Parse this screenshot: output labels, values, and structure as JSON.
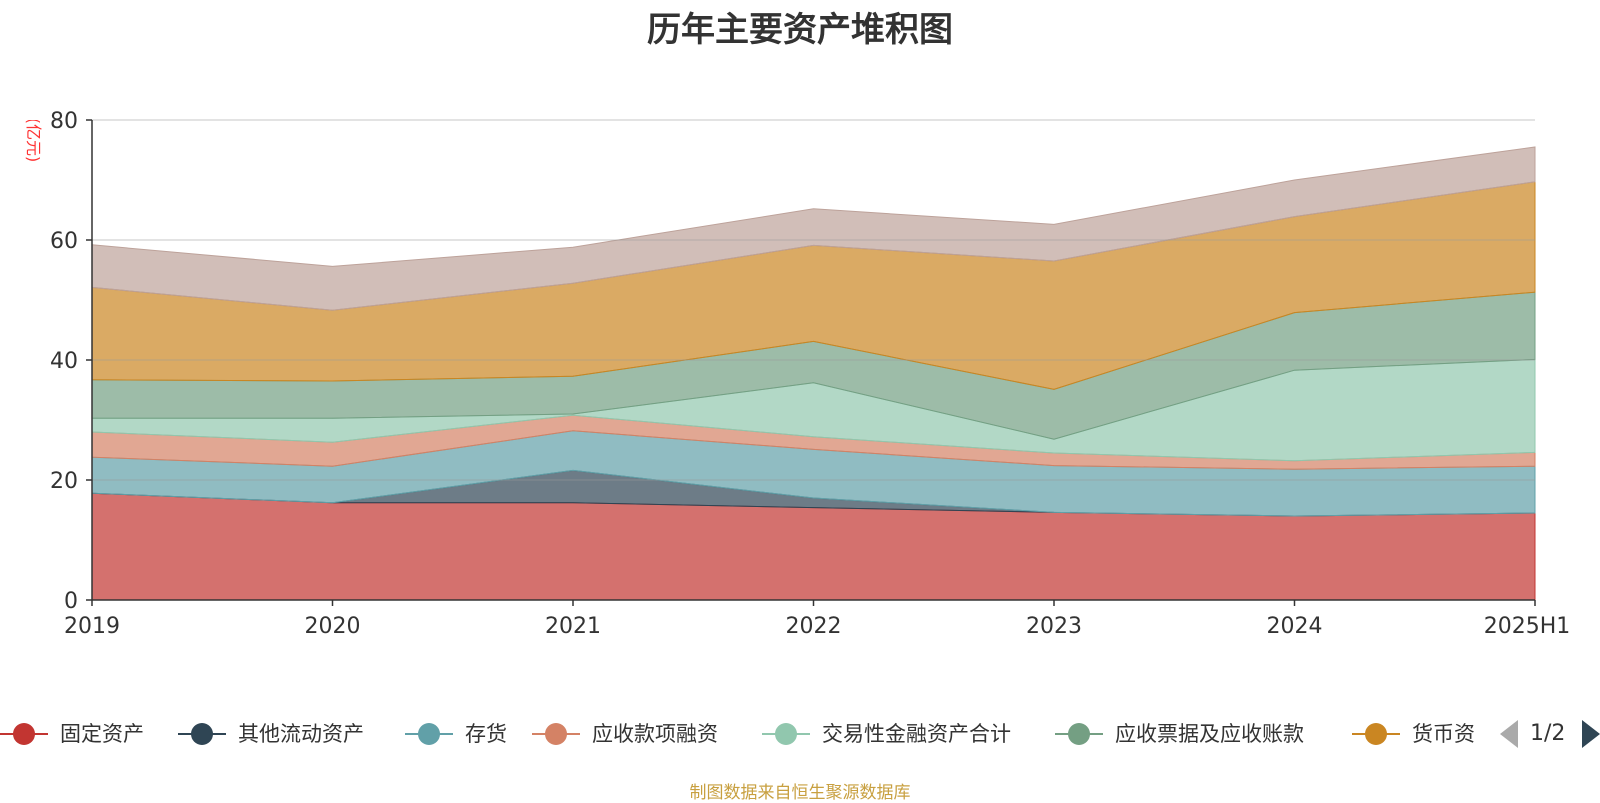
{
  "title": "历年主要资产堆积图",
  "unit_label": "(亿元)",
  "source_note": "制图数据来自恒生聚源数据库",
  "pager": {
    "text": "1/2"
  },
  "legend": [
    {
      "label": "固定资产",
      "color": "#c23531"
    },
    {
      "label": "其他流动资产",
      "color": "#2f4554"
    },
    {
      "label": "存货",
      "color": "#61a0a8"
    },
    {
      "label": "应收款项融资",
      "color": "#d48265"
    },
    {
      "label": "交易性金融资产合计",
      "color": "#91c7ae"
    },
    {
      "label": "应收票据及应收账款",
      "color": "#749f83"
    },
    {
      "label": "货币资",
      "color": "#ca8622"
    }
  ],
  "chart_data": {
    "type": "area",
    "stacked": true,
    "categories": [
      "2019",
      "2020",
      "2021",
      "2022",
      "2023",
      "2024",
      "2025H1"
    ],
    "y_ticks": [
      "0",
      "20",
      "40",
      "60",
      "80"
    ],
    "ylim": [
      0,
      80
    ],
    "grid": true,
    "series": [
      {
        "name": "固定资产",
        "color": "#c23531",
        "values": [
          17.8,
          16.2,
          16.2,
          15.4,
          14.6,
          14.0,
          14.5
        ]
      },
      {
        "name": "其他流动资产",
        "color": "#2f4554",
        "values": [
          0.0,
          0.0,
          5.4,
          1.6,
          0.0,
          0.0,
          0.0
        ]
      },
      {
        "name": "存货",
        "color": "#61a0a8",
        "values": [
          6.0,
          6.1,
          6.6,
          8.1,
          7.8,
          7.8,
          7.8
        ]
      },
      {
        "name": "应收款项融资",
        "color": "#d48265",
        "values": [
          4.2,
          4.0,
          2.6,
          2.1,
          2.1,
          1.4,
          2.3
        ]
      },
      {
        "name": "交易性金融资产合计",
        "color": "#91c7ae",
        "values": [
          2.3,
          4.0,
          0.2,
          9.0,
          2.3,
          15.1,
          15.5
        ]
      },
      {
        "name": "应收票据及应收账款",
        "color": "#749f83",
        "values": [
          6.4,
          6.2,
          6.3,
          6.9,
          8.3,
          9.6,
          11.2
        ]
      },
      {
        "name": "货币资金",
        "color": "#ca8622",
        "values": [
          15.4,
          11.8,
          15.5,
          16.0,
          21.4,
          16.0,
          18.4
        ]
      },
      {
        "name": "",
        "color": "#bda29a",
        "values": [
          7.1,
          7.3,
          6.0,
          6.1,
          6.1,
          6.1,
          5.8
        ]
      }
    ]
  }
}
